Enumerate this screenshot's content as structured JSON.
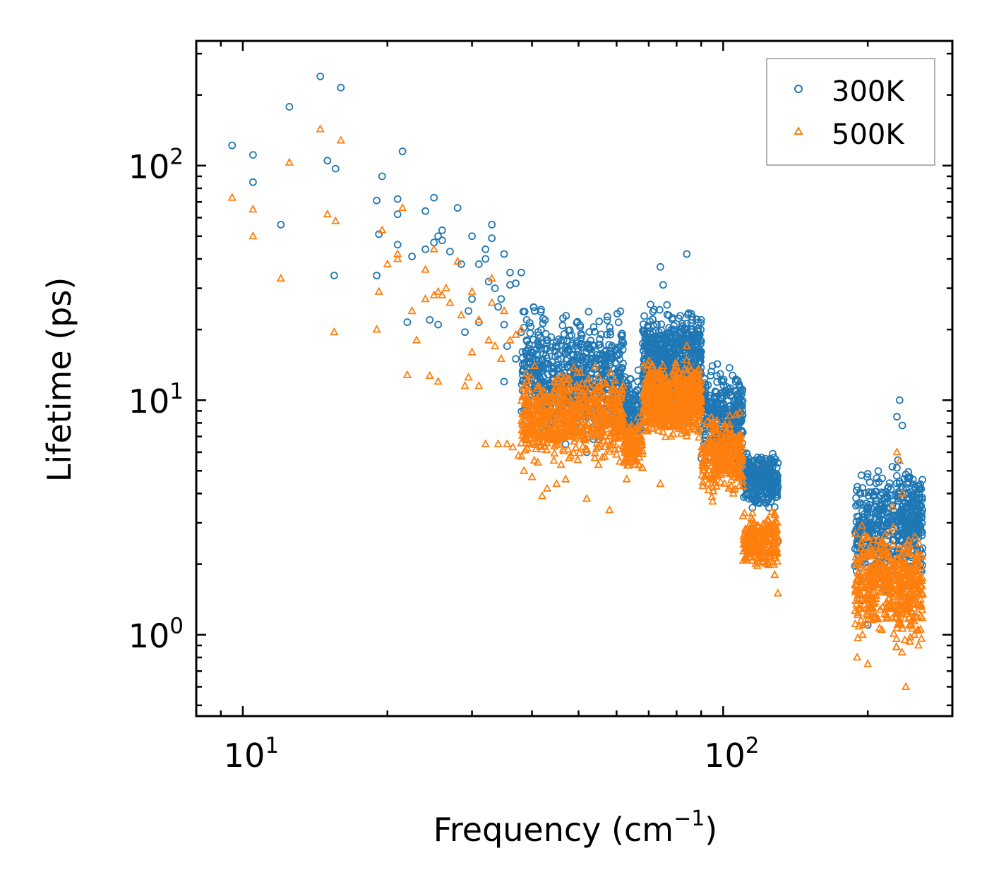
{
  "chart_data": {
    "type": "scatter",
    "title": "",
    "xlabel": "Frequency (cm",
    "xlabel_sup": "−1",
    "xlabel_close": ")",
    "ylabel": "Lifetime (ps)",
    "xscale": "log",
    "yscale": "log",
    "xlim": [
      8,
      300
    ],
    "ylim": [
      0.45,
      340
    ],
    "x_ticks": [
      {
        "base": "10",
        "exp": "1",
        "value": 10
      },
      {
        "base": "10",
        "exp": "2",
        "value": 100
      }
    ],
    "y_ticks": [
      {
        "base": "10",
        "exp": "0",
        "value": 1
      },
      {
        "base": "10",
        "exp": "1",
        "value": 10
      },
      {
        "base": "10",
        "exp": "2",
        "value": 100
      }
    ],
    "legend_position": "top-right",
    "series": [
      {
        "name": "300K",
        "marker": "circle",
        "color": "#1f77b4",
        "points": [
          [
            9.5,
            122
          ],
          [
            10.5,
            111
          ],
          [
            10.5,
            85
          ],
          [
            12,
            56
          ],
          [
            12.5,
            178
          ],
          [
            14.5,
            240
          ],
          [
            15,
            105
          ],
          [
            15.5,
            34
          ],
          [
            15.6,
            97
          ],
          [
            16,
            215
          ],
          [
            19,
            71
          ],
          [
            19,
            34
          ],
          [
            19.2,
            51
          ],
          [
            19.5,
            90
          ],
          [
            21,
            62
          ],
          [
            21,
            72
          ],
          [
            21,
            46
          ],
          [
            21.5,
            115
          ],
          [
            22,
            21.5
          ],
          [
            22.5,
            41
          ],
          [
            24,
            44
          ],
          [
            24,
            64
          ],
          [
            24.5,
            22
          ],
          [
            25,
            73
          ],
          [
            25,
            47
          ],
          [
            25.5,
            50
          ],
          [
            25.5,
            21
          ],
          [
            26,
            48
          ],
          [
            26,
            53
          ],
          [
            27,
            43
          ],
          [
            28,
            66
          ],
          [
            28.5,
            38
          ],
          [
            29,
            19.5
          ],
          [
            29.5,
            24
          ],
          [
            30,
            50
          ],
          [
            30,
            27
          ],
          [
            31,
            38
          ],
          [
            31,
            21.5
          ],
          [
            32,
            44
          ],
          [
            32,
            40
          ],
          [
            32.5,
            32
          ],
          [
            33,
            56
          ],
          [
            33,
            49
          ],
          [
            33.5,
            30
          ],
          [
            34,
            25
          ],
          [
            34.5,
            27
          ],
          [
            35,
            42
          ],
          [
            35,
            21
          ],
          [
            35,
            12
          ],
          [
            35.5,
            17
          ],
          [
            36,
            31
          ],
          [
            36,
            35
          ],
          [
            37,
            31.5
          ],
          [
            37,
            15
          ],
          [
            38,
            35
          ],
          [
            38,
            19.5
          ],
          [
            39,
            22
          ],
          [
            40,
            16
          ],
          [
            40.5,
            24
          ],
          [
            41,
            11
          ],
          [
            42,
            7.3
          ],
          [
            43,
            7
          ],
          [
            44,
            8
          ],
          [
            45,
            6.8
          ],
          [
            46,
            7.5
          ],
          [
            47,
            6.5
          ],
          [
            52,
            6
          ],
          [
            55,
            6.8
          ],
          [
            63,
            6.5
          ],
          [
            74,
            37
          ],
          [
            75,
            31
          ],
          [
            78,
            20
          ],
          [
            80,
            15
          ],
          [
            84,
            42
          ],
          [
            90,
            22
          ],
          [
            95,
            14
          ],
          [
            100,
            12
          ],
          [
            105,
            9
          ],
          [
            110,
            6
          ],
          [
            115,
            5
          ],
          [
            120,
            5.7
          ],
          [
            125,
            4
          ],
          [
            128,
            3.5
          ],
          [
            130,
            2.5
          ],
          [
            190,
            2.5
          ],
          [
            195,
            1.4
          ],
          [
            200,
            1.1
          ],
          [
            205,
            1.8
          ],
          [
            210,
            3
          ],
          [
            215,
            4
          ],
          [
            220,
            3.8
          ],
          [
            225,
            5.2
          ],
          [
            230,
            8.5
          ],
          [
            233,
            10
          ],
          [
            236,
            7.8
          ],
          [
            240,
            3.5
          ],
          [
            245,
            3
          ],
          [
            250,
            2.5
          ],
          [
            255,
            2.1
          ],
          [
            258,
            1.9
          ],
          [
            260,
            2.2
          ]
        ],
        "clusters": [
          {
            "x": [
              38,
              62
            ],
            "y": [
              4.5,
              28
            ],
            "n": 650
          },
          {
            "x": [
              62,
              68
            ],
            "y": [
              5,
              14
            ],
            "n": 120
          },
          {
            "x": [
              68,
              90
            ],
            "y": [
              6,
              28
            ],
            "n": 650
          },
          {
            "x": [
              90,
              110
            ],
            "y": [
              4.2,
              15
            ],
            "n": 300
          },
          {
            "x": [
              110,
              130
            ],
            "y": [
              2.8,
              6.5
            ],
            "n": 260
          },
          {
            "x": [
              188,
              228
            ],
            "y": [
              1.0,
              6.0
            ],
            "n": 260
          },
          {
            "x": [
              228,
              260
            ],
            "y": [
              1.2,
              6.0
            ],
            "n": 240
          }
        ]
      },
      {
        "name": "500K",
        "marker": "triangle",
        "color": "#ff7f0e",
        "points": [
          [
            9.5,
            73
          ],
          [
            10.5,
            65
          ],
          [
            10.5,
            50
          ],
          [
            12,
            33
          ],
          [
            12.5,
            103
          ],
          [
            14.5,
            143
          ],
          [
            15,
            62
          ],
          [
            15.5,
            19.5
          ],
          [
            15.6,
            58
          ],
          [
            16,
            128
          ],
          [
            19,
            20
          ],
          [
            19.2,
            29
          ],
          [
            19.5,
            53
          ],
          [
            20,
            38
          ],
          [
            21,
            40
          ],
          [
            21,
            42
          ],
          [
            21.5,
            66
          ],
          [
            22,
            12.8
          ],
          [
            22.5,
            24
          ],
          [
            23,
            18
          ],
          [
            24,
            27
          ],
          [
            24,
            36
          ],
          [
            24.5,
            12.7
          ],
          [
            25,
            44
          ],
          [
            25,
            28
          ],
          [
            25.5,
            29
          ],
          [
            25.5,
            12
          ],
          [
            26,
            28
          ],
          [
            26.5,
            30
          ],
          [
            27,
            26
          ],
          [
            28,
            39
          ],
          [
            28.5,
            23
          ],
          [
            29,
            11.5
          ],
          [
            29.5,
            12.5
          ],
          [
            30,
            29
          ],
          [
            30,
            16
          ],
          [
            31,
            22
          ],
          [
            31,
            11.5
          ],
          [
            32,
            6.5
          ],
          [
            32.5,
            18
          ],
          [
            33,
            33
          ],
          [
            33,
            26
          ],
          [
            33.5,
            17
          ],
          [
            34,
            6.5
          ],
          [
            34.5,
            15
          ],
          [
            35,
            24
          ],
          [
            35.5,
            6.5
          ],
          [
            36,
            18
          ],
          [
            36.5,
            6.3
          ],
          [
            37,
            19
          ],
          [
            37.5,
            5.8
          ],
          [
            38,
            20
          ],
          [
            38.5,
            5
          ],
          [
            39,
            12
          ],
          [
            40,
            4.7
          ],
          [
            40.5,
            14
          ],
          [
            42,
            3.9
          ],
          [
            43,
            4.2
          ],
          [
            45,
            4.4
          ],
          [
            47,
            4.6
          ],
          [
            52,
            3.8
          ],
          [
            55,
            5.3
          ],
          [
            58,
            3.4
          ],
          [
            63,
            4.6
          ],
          [
            74,
            4.4
          ],
          [
            75,
            14
          ],
          [
            78,
            10
          ],
          [
            80,
            9
          ],
          [
            84,
            17
          ],
          [
            90,
            9
          ],
          [
            95,
            6
          ],
          [
            100,
            5.5
          ],
          [
            105,
            4
          ],
          [
            110,
            3.2
          ],
          [
            115,
            3.3
          ],
          [
            120,
            2.5
          ],
          [
            125,
            2.2
          ],
          [
            128,
            1.8
          ],
          [
            130,
            1.5
          ],
          [
            190,
            0.8
          ],
          [
            195,
            1.0
          ],
          [
            200,
            0.75
          ],
          [
            205,
            1.3
          ],
          [
            210,
            1.8
          ],
          [
            215,
            2.5
          ],
          [
            220,
            2.1
          ],
          [
            225,
            3.5
          ],
          [
            230,
            6
          ],
          [
            233,
            5.5
          ],
          [
            236,
            4
          ],
          [
            240,
            0.6
          ],
          [
            245,
            1.5
          ],
          [
            250,
            1.0
          ],
          [
            255,
            0.9
          ],
          [
            258,
            1.2
          ],
          [
            260,
            1.5
          ]
        ],
        "clusters": [
          {
            "x": [
              38,
              62
            ],
            "y": [
              3.8,
              15
            ],
            "n": 650
          },
          {
            "x": [
              62,
              68
            ],
            "y": [
              4.2,
              9
            ],
            "n": 120
          },
          {
            "x": [
              68,
              90
            ],
            "y": [
              5.5,
              16
            ],
            "n": 650
          },
          {
            "x": [
              90,
              110
            ],
            "y": [
              3.0,
              9.5
            ],
            "n": 300
          },
          {
            "x": [
              110,
              130
            ],
            "y": [
              1.6,
              3.5
            ],
            "n": 260
          },
          {
            "x": [
              188,
              228
            ],
            "y": [
              0.65,
              3.5
            ],
            "n": 260
          },
          {
            "x": [
              228,
              260
            ],
            "y": [
              0.58,
              3.0
            ],
            "n": 240
          }
        ]
      }
    ]
  }
}
